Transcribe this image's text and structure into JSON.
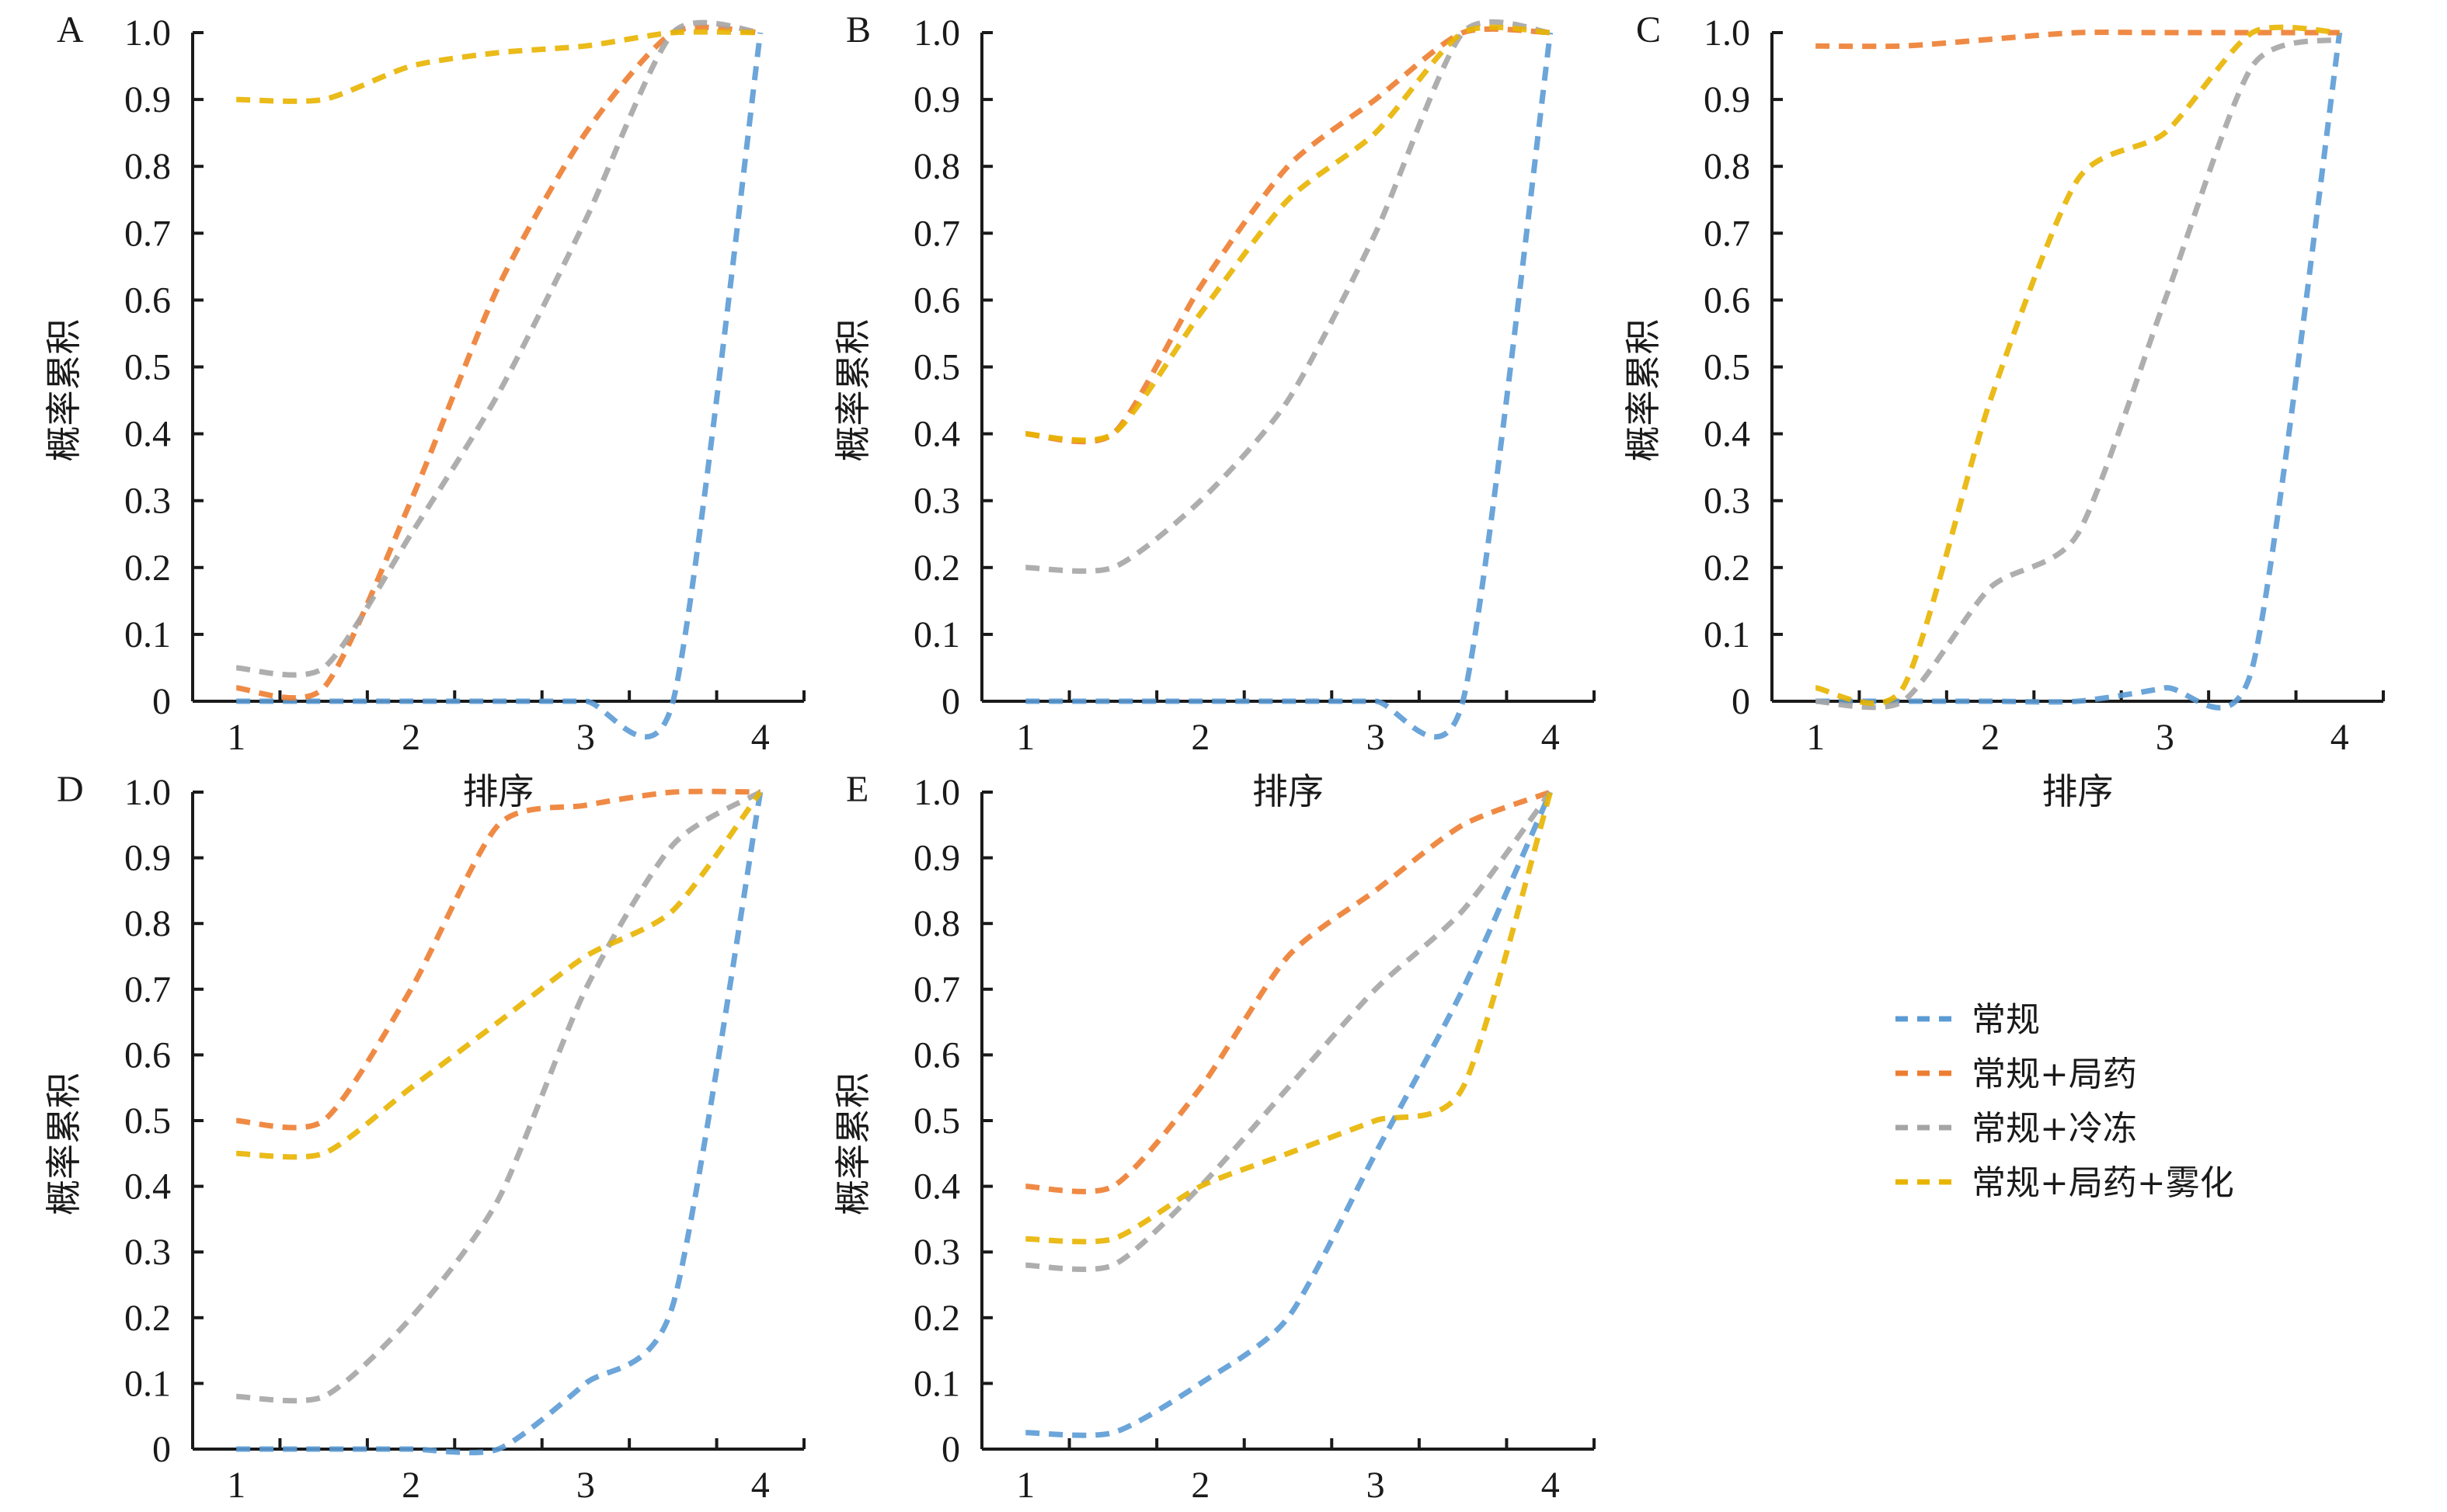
{
  "legend": {
    "position": "right-middle of bottom row",
    "items": [
      {
        "key": "conventional",
        "label": "常规",
        "color": "#5b9bd5"
      },
      {
        "key": "conventional_topical",
        "label": "常规+局药",
        "color": "#ed7d31"
      },
      {
        "key": "conventional_cryo",
        "label": "常规+冷冻",
        "color": "#a5a5a5"
      },
      {
        "key": "conventional_topical_nebul",
        "label": "常规+局药+雾化",
        "color": "#e8b400"
      }
    ]
  },
  "chart_data": [
    {
      "type": "line",
      "panel": "A",
      "title": "",
      "xlabel": "排序",
      "ylabel": "概率累积",
      "xticks": [
        "1",
        "2",
        "3",
        "4"
      ],
      "yticks": [
        "0",
        "0.1",
        "0.2",
        "0.3",
        "0.4",
        "0.5",
        "0.6",
        "0.7",
        "0.8",
        "0.9",
        "1.0"
      ],
      "xlim": [
        0.75,
        4.25
      ],
      "ylim": [
        0,
        1.0
      ],
      "grid": false,
      "x": [
        1,
        1.5,
        2,
        2.5,
        3,
        3.5,
        4
      ],
      "series": [
        {
          "name": "常规",
          "key": "conventional",
          "values": [
            0,
            0,
            0,
            0,
            0,
            0,
            1.0
          ]
        },
        {
          "name": "常规+局药",
          "key": "conventional_topical",
          "values": [
            0.02,
            0.02,
            0.3,
            0.62,
            0.85,
            1.0,
            1.0
          ]
        },
        {
          "name": "常规+冷冻",
          "key": "conventional_cryo",
          "values": [
            0.05,
            0.05,
            0.25,
            0.46,
            0.72,
            1.0,
            1.0
          ]
        },
        {
          "name": "常规+局药+雾化",
          "key": "conventional_topical_nebul",
          "values": [
            0.9,
            0.9,
            0.95,
            0.97,
            0.98,
            1.0,
            1.0
          ]
        }
      ]
    },
    {
      "type": "line",
      "panel": "B",
      "title": "",
      "xlabel": "排序",
      "ylabel": "概率累积",
      "xticks": [
        "1",
        "2",
        "3",
        "4"
      ],
      "yticks": [
        "0",
        "0.1",
        "0.2",
        "0.3",
        "0.4",
        "0.5",
        "0.6",
        "0.7",
        "0.8",
        "0.9",
        "1.0"
      ],
      "xlim": [
        0.75,
        4.25
      ],
      "ylim": [
        0,
        1.0
      ],
      "grid": false,
      "x": [
        1,
        1.5,
        2,
        2.5,
        3,
        3.5,
        4
      ],
      "series": [
        {
          "name": "常规",
          "key": "conventional",
          "values": [
            0,
            0,
            0,
            0,
            0,
            0,
            1.0
          ]
        },
        {
          "name": "常规+局药",
          "key": "conventional_topical",
          "values": [
            0.4,
            0.4,
            0.62,
            0.8,
            0.9,
            1.0,
            1.0
          ]
        },
        {
          "name": "常规+冷冻",
          "key": "conventional_cryo",
          "values": [
            0.2,
            0.2,
            0.3,
            0.45,
            0.7,
            1.0,
            1.0
          ]
        },
        {
          "name": "常规+局药+雾化",
          "key": "conventional_topical_nebul",
          "values": [
            0.4,
            0.4,
            0.58,
            0.75,
            0.85,
            1.0,
            1.0
          ]
        }
      ]
    },
    {
      "type": "line",
      "panel": "C",
      "title": "",
      "xlabel": "排序",
      "ylabel": "概率累积",
      "xticks": [
        "1",
        "2",
        "3",
        "4"
      ],
      "yticks": [
        "0",
        "0.1",
        "0.2",
        "0.3",
        "0.4",
        "0.5",
        "0.6",
        "0.7",
        "0.8",
        "0.9",
        "1.0"
      ],
      "xlim": [
        0.75,
        4.25
      ],
      "ylim": [
        0,
        1.0
      ],
      "grid": false,
      "x": [
        1,
        1.5,
        2,
        2.5,
        3,
        3.5,
        4
      ],
      "series": [
        {
          "name": "常规",
          "key": "conventional",
          "values": [
            0,
            0,
            0,
            0,
            0.02,
            0.05,
            1.0
          ]
        },
        {
          "name": "常规+局药",
          "key": "conventional_topical",
          "values": [
            0.98,
            0.98,
            0.99,
            1.0,
            1.0,
            1.0,
            1.0
          ]
        },
        {
          "name": "常规+冷冻",
          "key": "conventional_cryo",
          "values": [
            0,
            0,
            0.17,
            0.25,
            0.6,
            0.95,
            0.99
          ]
        },
        {
          "name": "常规+局药+雾化",
          "key": "conventional_topical_nebul",
          "values": [
            0.02,
            0.02,
            0.45,
            0.78,
            0.85,
            1.0,
            1.0
          ]
        }
      ]
    },
    {
      "type": "line",
      "panel": "D",
      "title": "",
      "xlabel": "排序",
      "ylabel": "概率累积",
      "xticks": [
        "1",
        "2",
        "3",
        "4"
      ],
      "yticks": [
        "0",
        "0.1",
        "0.2",
        "0.3",
        "0.4",
        "0.5",
        "0.6",
        "0.7",
        "0.8",
        "0.9",
        "1.0"
      ],
      "xlim": [
        0.75,
        4.25
      ],
      "ylim": [
        0,
        1.0
      ],
      "grid": false,
      "x": [
        1,
        1.5,
        2,
        2.5,
        3,
        3.5,
        4
      ],
      "series": [
        {
          "name": "常规",
          "key": "conventional",
          "values": [
            0,
            0,
            0,
            0,
            0.1,
            0.22,
            1.0
          ]
        },
        {
          "name": "常规+局药",
          "key": "conventional_topical",
          "values": [
            0.5,
            0.5,
            0.7,
            0.95,
            0.98,
            1.0,
            1.0
          ]
        },
        {
          "name": "常规+冷冻",
          "key": "conventional_cryo",
          "values": [
            0.08,
            0.08,
            0.2,
            0.38,
            0.7,
            0.92,
            1.0
          ]
        },
        {
          "name": "常规+局药+雾化",
          "key": "conventional_topical_nebul",
          "values": [
            0.45,
            0.45,
            0.55,
            0.65,
            0.75,
            0.82,
            1.0
          ]
        }
      ]
    },
    {
      "type": "line",
      "panel": "E",
      "title": "",
      "xlabel": "排序",
      "ylabel": "概率累积",
      "xticks": [
        "1",
        "2",
        "3",
        "4"
      ],
      "yticks": [
        "0",
        "0.1",
        "0.2",
        "0.3",
        "0.4",
        "0.5",
        "0.6",
        "0.7",
        "0.8",
        "0.9",
        "1.0"
      ],
      "xlim": [
        0.75,
        4.25
      ],
      "ylim": [
        0,
        1.0
      ],
      "grid": false,
      "x": [
        1,
        1.5,
        2,
        2.5,
        3,
        3.5,
        4
      ],
      "series": [
        {
          "name": "常规",
          "key": "conventional",
          "values": [
            0.025,
            0.025,
            0.1,
            0.2,
            0.45,
            0.7,
            1.0
          ]
        },
        {
          "name": "常规+局药",
          "key": "conventional_topical",
          "values": [
            0.4,
            0.4,
            0.55,
            0.75,
            0.85,
            0.95,
            1.0
          ]
        },
        {
          "name": "常规+冷冻",
          "key": "conventional_cryo",
          "values": [
            0.28,
            0.28,
            0.4,
            0.55,
            0.7,
            0.82,
            1.0
          ]
        },
        {
          "name": "常规+局药+雾化",
          "key": "conventional_topical_nebul",
          "values": [
            0.32,
            0.32,
            0.4,
            0.45,
            0.5,
            0.55,
            1.0
          ]
        }
      ]
    }
  ]
}
